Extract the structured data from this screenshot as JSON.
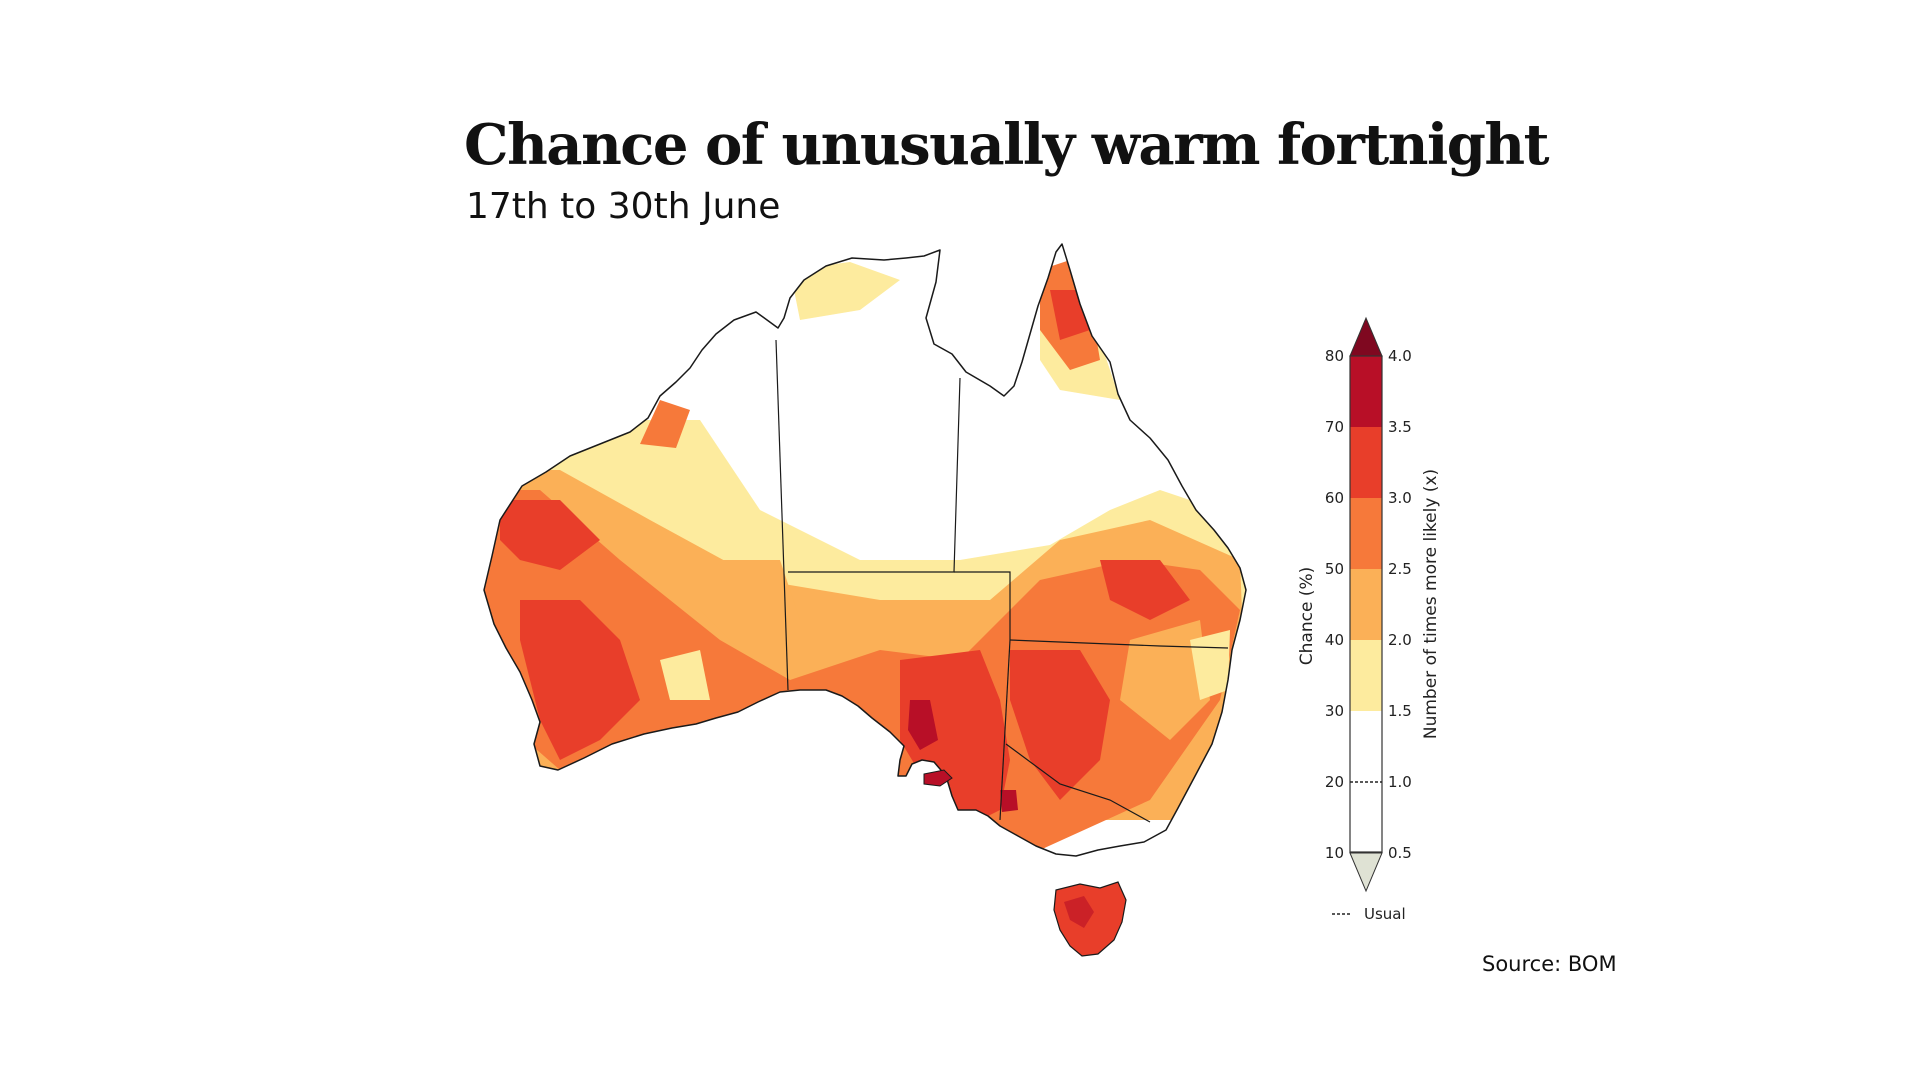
{
  "header": {
    "title": "Chance of unusually warm fortnight",
    "subtitle": "17th to 30th June"
  },
  "legend": {
    "chance_label": "Chance (%)",
    "likely_label": "Number of times more likely (x)",
    "chance_ticks": [
      "80",
      "70",
      "60",
      "50",
      "40",
      "30",
      "20",
      "10"
    ],
    "likely_ticks": [
      "4.0",
      "3.5",
      "3.0",
      "2.5",
      "2.0",
      "1.5",
      "1.0",
      "0.5"
    ],
    "usual_label": "Usual",
    "bands": [
      {
        "range": "70-80",
        "likely": "3.5-4.0",
        "color": "#b80f27"
      },
      {
        "range": "60-70",
        "likely": "3.0-3.5",
        "color": "#e83e2a"
      },
      {
        "range": "50-60",
        "likely": "2.5-3.0",
        "color": "#f6793a"
      },
      {
        "range": "40-50",
        "likely": "2.0-2.5",
        "color": "#fbb057"
      },
      {
        "range": "30-40",
        "likely": "1.5-2.0",
        "color": "#fdeb9e"
      },
      {
        "range": "10-30",
        "likely": "0.5-1.5",
        "color": "#ffffff"
      }
    ],
    "over_color": "#7f0820",
    "under_color": "#dfe2d4"
  },
  "map": {
    "colors": {
      "very_high": "#b80f27",
      "high": "#e83e2a",
      "med_high": "#f6793a",
      "medium": "#fbb057",
      "low": "#fdeb9e",
      "neutral": "#ffffff",
      "outline": "#1a1a1a"
    }
  },
  "footer": {
    "source": "Source: BOM"
  }
}
